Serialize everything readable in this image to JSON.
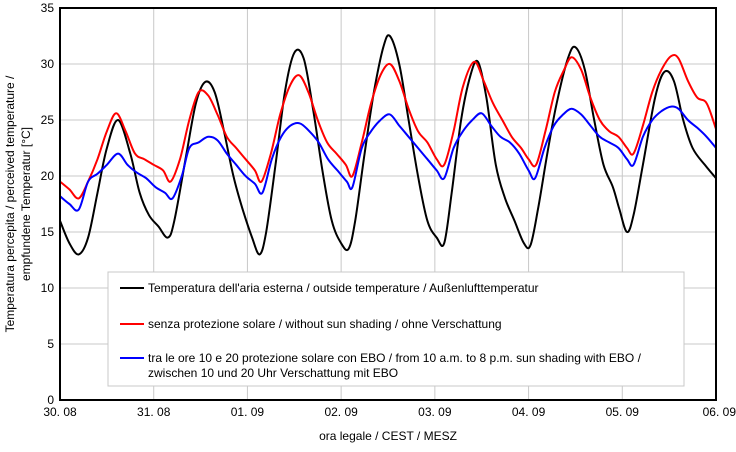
{
  "chart_data": {
    "type": "line",
    "title": "",
    "xlabel": "ora legale / CEST / MESZ",
    "ylabel_lines": [
      "Temperatura percepita / perceived temperature /",
      "empfundene Temperatur [°C]"
    ],
    "x_tick_labels": [
      "30. 08",
      "31. 08",
      "01. 09",
      "02. 09",
      "03. 09",
      "04. 09",
      "05. 09",
      "06. 09"
    ],
    "x_range_days": [
      0,
      7
    ],
    "ylim": [
      0,
      35
    ],
    "y_ticks": [
      0,
      5,
      10,
      15,
      20,
      25,
      30,
      35
    ],
    "grid": true,
    "legend_position": "bottom-center",
    "series": [
      {
        "name": "Temperatura dell'aria esterna / outside temperature / Außenlufttemperatur",
        "name_lines": [
          "Temperatura dell'aria esterna / outside temperature / Außenlufttemperatur"
        ],
        "color": "#000000",
        "points": [
          [
            0.0,
            16.0
          ],
          [
            0.1,
            14.0
          ],
          [
            0.2,
            13.0
          ],
          [
            0.3,
            14.5
          ],
          [
            0.4,
            18.5
          ],
          [
            0.5,
            22.5
          ],
          [
            0.62,
            25.0
          ],
          [
            0.75,
            22.0
          ],
          [
            0.85,
            18.5
          ],
          [
            0.95,
            16.5
          ],
          [
            1.05,
            15.5
          ],
          [
            1.15,
            14.5
          ],
          [
            1.22,
            16.0
          ],
          [
            1.35,
            22.0
          ],
          [
            1.45,
            26.5
          ],
          [
            1.55,
            28.4
          ],
          [
            1.65,
            27.5
          ],
          [
            1.75,
            24.0
          ],
          [
            1.85,
            20.0
          ],
          [
            1.95,
            17.0
          ],
          [
            2.05,
            14.5
          ],
          [
            2.13,
            13.0
          ],
          [
            2.2,
            15.0
          ],
          [
            2.3,
            21.0
          ],
          [
            2.4,
            27.5
          ],
          [
            2.5,
            31.0
          ],
          [
            2.6,
            30.5
          ],
          [
            2.7,
            26.0
          ],
          [
            2.8,
            20.5
          ],
          [
            2.9,
            16.0
          ],
          [
            3.0,
            14.0
          ],
          [
            3.08,
            13.5
          ],
          [
            3.15,
            16.0
          ],
          [
            3.25,
            22.0
          ],
          [
            3.35,
            27.5
          ],
          [
            3.45,
            31.5
          ],
          [
            3.52,
            32.5
          ],
          [
            3.62,
            30.0
          ],
          [
            3.72,
            25.0
          ],
          [
            3.82,
            20.0
          ],
          [
            3.92,
            16.0
          ],
          [
            4.02,
            14.5
          ],
          [
            4.1,
            14.0
          ],
          [
            4.18,
            18.5
          ],
          [
            4.28,
            25.0
          ],
          [
            4.38,
            29.0
          ],
          [
            4.46,
            30.2
          ],
          [
            4.55,
            27.0
          ],
          [
            4.65,
            21.0
          ],
          [
            4.75,
            18.0
          ],
          [
            4.85,
            16.0
          ],
          [
            4.95,
            14.0
          ],
          [
            5.02,
            13.8
          ],
          [
            5.1,
            17.0
          ],
          [
            5.2,
            22.0
          ],
          [
            5.3,
            26.5
          ],
          [
            5.42,
            30.5
          ],
          [
            5.5,
            31.5
          ],
          [
            5.6,
            29.5
          ],
          [
            5.7,
            25.0
          ],
          [
            5.8,
            21.0
          ],
          [
            5.9,
            19.0
          ],
          [
            5.97,
            17.0
          ],
          [
            6.05,
            15.0
          ],
          [
            6.12,
            16.5
          ],
          [
            6.22,
            21.0
          ],
          [
            6.35,
            27.0
          ],
          [
            6.45,
            29.3
          ],
          [
            6.55,
            28.5
          ],
          [
            6.65,
            25.0
          ],
          [
            6.75,
            22.5
          ],
          [
            6.88,
            21.0
          ],
          [
            7.0,
            19.8
          ]
        ]
      },
      {
        "name": "senza protezione solare / without sun shading / ohne Verschattung",
        "name_lines": [
          "senza protezione solare / without sun shading / ohne Verschattung"
        ],
        "color": "#ff0000",
        "points": [
          [
            0.0,
            19.5
          ],
          [
            0.1,
            18.8
          ],
          [
            0.2,
            18.0
          ],
          [
            0.3,
            19.5
          ],
          [
            0.4,
            21.5
          ],
          [
            0.5,
            24.0
          ],
          [
            0.6,
            25.6
          ],
          [
            0.7,
            24.0
          ],
          [
            0.8,
            22.0
          ],
          [
            0.9,
            21.5
          ],
          [
            1.0,
            21.0
          ],
          [
            1.1,
            20.5
          ],
          [
            1.18,
            19.5
          ],
          [
            1.28,
            21.5
          ],
          [
            1.38,
            25.0
          ],
          [
            1.48,
            27.5
          ],
          [
            1.58,
            27.2
          ],
          [
            1.68,
            25.5
          ],
          [
            1.78,
            23.5
          ],
          [
            1.88,
            22.5
          ],
          [
            1.98,
            21.5
          ],
          [
            2.08,
            20.5
          ],
          [
            2.15,
            19.5
          ],
          [
            2.25,
            22.0
          ],
          [
            2.35,
            25.5
          ],
          [
            2.45,
            28.0
          ],
          [
            2.55,
            29.0
          ],
          [
            2.65,
            27.5
          ],
          [
            2.75,
            25.0
          ],
          [
            2.85,
            23.0
          ],
          [
            2.95,
            22.0
          ],
          [
            3.05,
            21.0
          ],
          [
            3.12,
            20.0
          ],
          [
            3.22,
            23.0
          ],
          [
            3.32,
            26.5
          ],
          [
            3.42,
            29.0
          ],
          [
            3.52,
            30.0
          ],
          [
            3.62,
            28.5
          ],
          [
            3.72,
            26.0
          ],
          [
            3.82,
            24.0
          ],
          [
            3.92,
            23.0
          ],
          [
            4.02,
            21.5
          ],
          [
            4.1,
            21.0
          ],
          [
            4.2,
            24.0
          ],
          [
            4.3,
            28.0
          ],
          [
            4.42,
            30.2
          ],
          [
            4.52,
            28.5
          ],
          [
            4.62,
            26.5
          ],
          [
            4.72,
            25.0
          ],
          [
            4.82,
            23.5
          ],
          [
            4.92,
            22.5
          ],
          [
            5.0,
            21.5
          ],
          [
            5.08,
            21.0
          ],
          [
            5.18,
            24.0
          ],
          [
            5.28,
            27.5
          ],
          [
            5.38,
            29.5
          ],
          [
            5.46,
            30.6
          ],
          [
            5.56,
            29.5
          ],
          [
            5.66,
            27.0
          ],
          [
            5.76,
            25.0
          ],
          [
            5.86,
            24.0
          ],
          [
            5.96,
            23.5
          ],
          [
            6.05,
            22.5
          ],
          [
            6.12,
            22.0
          ],
          [
            6.22,
            24.5
          ],
          [
            6.32,
            27.5
          ],
          [
            6.42,
            29.5
          ],
          [
            6.52,
            30.7
          ],
          [
            6.6,
            30.5
          ],
          [
            6.7,
            28.5
          ],
          [
            6.8,
            27.0
          ],
          [
            6.9,
            26.5
          ],
          [
            7.0,
            24.2
          ]
        ]
      },
      {
        "name": "tra le ore 10 e 20 protezione solare con EBO / from 10 a.m. to 8 p.m. sun shading with EBO / zwischen 10 und 20 Uhr Verschattung mit EBO",
        "name_lines": [
          "tra le ore 10 e 20 protezione solare con EBO / from 10 a.m. to 8 p.m. sun shading with EBO /",
          "zwischen 10 und 20 Uhr Verschattung mit EBO"
        ],
        "color": "#0000ff",
        "points": [
          [
            0.0,
            18.2
          ],
          [
            0.1,
            17.5
          ],
          [
            0.2,
            17.0
          ],
          [
            0.3,
            19.5
          ],
          [
            0.4,
            20.2
          ],
          [
            0.5,
            21.0
          ],
          [
            0.62,
            22.0
          ],
          [
            0.72,
            21.0
          ],
          [
            0.82,
            20.3
          ],
          [
            0.92,
            19.8
          ],
          [
            1.02,
            19.0
          ],
          [
            1.12,
            18.5
          ],
          [
            1.2,
            18.0
          ],
          [
            1.3,
            20.0
          ],
          [
            1.38,
            22.5
          ],
          [
            1.48,
            23.0
          ],
          [
            1.58,
            23.5
          ],
          [
            1.68,
            23.2
          ],
          [
            1.78,
            22.0
          ],
          [
            1.88,
            21.0
          ],
          [
            1.98,
            20.0
          ],
          [
            2.08,
            19.3
          ],
          [
            2.16,
            18.5
          ],
          [
            2.26,
            21.5
          ],
          [
            2.36,
            23.5
          ],
          [
            2.46,
            24.5
          ],
          [
            2.56,
            24.7
          ],
          [
            2.66,
            24.0
          ],
          [
            2.76,
            23.0
          ],
          [
            2.86,
            21.5
          ],
          [
            2.96,
            20.5
          ],
          [
            3.06,
            19.5
          ],
          [
            3.12,
            19.0
          ],
          [
            3.22,
            22.5
          ],
          [
            3.32,
            24.0
          ],
          [
            3.42,
            25.0
          ],
          [
            3.52,
            25.5
          ],
          [
            3.62,
            24.5
          ],
          [
            3.72,
            23.5
          ],
          [
            3.82,
            22.5
          ],
          [
            3.92,
            21.5
          ],
          [
            4.02,
            20.5
          ],
          [
            4.1,
            19.8
          ],
          [
            4.2,
            22.5
          ],
          [
            4.3,
            24.0
          ],
          [
            4.4,
            25.0
          ],
          [
            4.5,
            25.6
          ],
          [
            4.6,
            24.5
          ],
          [
            4.7,
            23.5
          ],
          [
            4.8,
            23.0
          ],
          [
            4.9,
            22.0
          ],
          [
            5.0,
            20.5
          ],
          [
            5.07,
            19.8
          ],
          [
            5.17,
            22.5
          ],
          [
            5.27,
            24.5
          ],
          [
            5.37,
            25.5
          ],
          [
            5.46,
            26.0
          ],
          [
            5.56,
            25.5
          ],
          [
            5.66,
            24.5
          ],
          [
            5.76,
            23.5
          ],
          [
            5.86,
            23.0
          ],
          [
            5.96,
            22.5
          ],
          [
            6.05,
            21.5
          ],
          [
            6.12,
            21.0
          ],
          [
            6.22,
            23.5
          ],
          [
            6.32,
            25.0
          ],
          [
            6.42,
            25.8
          ],
          [
            6.52,
            26.2
          ],
          [
            6.6,
            26.0
          ],
          [
            6.7,
            25.0
          ],
          [
            6.8,
            24.3
          ],
          [
            6.9,
            23.5
          ],
          [
            7.0,
            22.5
          ]
        ]
      }
    ]
  }
}
